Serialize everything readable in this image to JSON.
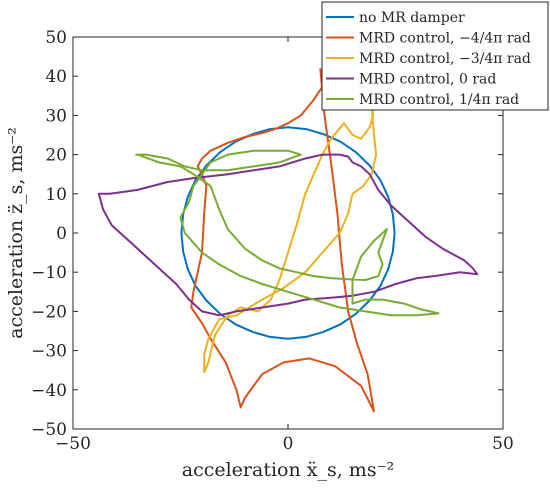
{
  "chart_data": {
    "type": "line",
    "xlabel": "acceleration ẍ_s, ms⁻²",
    "ylabel": "acceleration z̈_s, ms⁻²",
    "xlim": [
      -50,
      50
    ],
    "ylim": [
      -50,
      50
    ],
    "xticks": [
      "−50",
      "0",
      "50"
    ],
    "yticks": [
      "−50",
      "−40",
      "−30",
      "−20",
      "−10",
      "0",
      "10",
      "20",
      "30",
      "40",
      "50"
    ],
    "grid": false,
    "legend_position": "top-right",
    "series": [
      {
        "name": "no MR damper",
        "color": "#0072BD",
        "points": [
          [
            24.8,
            0
          ],
          [
            24.4,
            -4.7
          ],
          [
            23.3,
            -9.2
          ],
          [
            21.5,
            -13.5
          ],
          [
            19,
            -17.2
          ],
          [
            15.8,
            -20.6
          ],
          [
            12.2,
            -23.3
          ],
          [
            8.3,
            -25.2
          ],
          [
            4.2,
            -26.5
          ],
          [
            0,
            -27
          ],
          [
            -4.2,
            -26.5
          ],
          [
            -8.3,
            -25.2
          ],
          [
            -12.2,
            -23.3
          ],
          [
            -15.8,
            -20.6
          ],
          [
            -19,
            -17.2
          ],
          [
            -21.5,
            -13.5
          ],
          [
            -23.3,
            -9.2
          ],
          [
            -24.4,
            -4.7
          ],
          [
            -24.8,
            0
          ],
          [
            -24.4,
            4.7
          ],
          [
            -23.3,
            9.2
          ],
          [
            -21.5,
            13.5
          ],
          [
            -19,
            17.2
          ],
          [
            -15.8,
            20.6
          ],
          [
            -12.2,
            23.3
          ],
          [
            -8.3,
            25.2
          ],
          [
            -4.2,
            26.5
          ],
          [
            0,
            27
          ],
          [
            4.2,
            26.5
          ],
          [
            8.3,
            25.2
          ],
          [
            12.2,
            23.3
          ],
          [
            15.8,
            20.6
          ],
          [
            19,
            17.2
          ],
          [
            21.5,
            13.5
          ],
          [
            23.3,
            9.2
          ],
          [
            24.4,
            4.7
          ],
          [
            24.8,
            0
          ]
        ]
      },
      {
        "name": "MRD control, −4/4π rad",
        "color": "#D95319",
        "points": [
          [
            7.5,
            42
          ],
          [
            8.5,
            30
          ],
          [
            10,
            18
          ],
          [
            11.5,
            5
          ],
          [
            12.5,
            -8
          ],
          [
            14,
            -20
          ],
          [
            16,
            -28
          ],
          [
            18.5,
            -36
          ],
          [
            20,
            -45.5
          ],
          [
            17,
            -39
          ],
          [
            11,
            -34
          ],
          [
            5,
            -32
          ],
          [
            -1,
            -33
          ],
          [
            -6,
            -36
          ],
          [
            -10,
            -42
          ],
          [
            -11,
            -44.5
          ],
          [
            -12,
            -40
          ],
          [
            -14.5,
            -33
          ],
          [
            -18,
            -27
          ],
          [
            -20,
            -23
          ],
          [
            -22.5,
            -19
          ],
          [
            -22,
            -15
          ],
          [
            -20,
            -5
          ],
          [
            -19.5,
            5
          ],
          [
            -19,
            12
          ],
          [
            -20,
            15
          ],
          [
            -21,
            17
          ],
          [
            -20,
            19
          ],
          [
            -18,
            21
          ],
          [
            -14,
            23
          ],
          [
            -10,
            24.5
          ],
          [
            -6,
            25.5
          ],
          [
            -3,
            26.5
          ],
          [
            0,
            28
          ],
          [
            3,
            30
          ],
          [
            6,
            34
          ],
          [
            9,
            39
          ],
          [
            11,
            41.5
          ]
        ]
      },
      {
        "name": "MRD control, −3/4π rad",
        "color": "#EDB120",
        "points": [
          [
            19.5,
            32
          ],
          [
            20,
            25
          ],
          [
            20.5,
            20
          ],
          [
            19.5,
            15
          ],
          [
            17.5,
            12
          ],
          [
            15,
            10
          ],
          [
            14,
            5
          ],
          [
            12,
            0
          ],
          [
            8,
            -5
          ],
          [
            4,
            -10
          ],
          [
            -1,
            -14
          ],
          [
            -6,
            -17
          ],
          [
            -12,
            -21
          ],
          [
            -16,
            -22
          ],
          [
            -18.5,
            -27
          ],
          [
            -19.5,
            -31
          ],
          [
            -19.5,
            -35.5
          ],
          [
            -18.5,
            -33
          ],
          [
            -17,
            -26
          ],
          [
            -14,
            -21
          ],
          [
            -11,
            -19
          ],
          [
            -7,
            -20
          ],
          [
            -4,
            -17
          ],
          [
            -2,
            -12
          ],
          [
            0,
            -5
          ],
          [
            2,
            2
          ],
          [
            4,
            10
          ],
          [
            6,
            15
          ],
          [
            8,
            20
          ],
          [
            10,
            24
          ],
          [
            11.5,
            26
          ],
          [
            13,
            28
          ],
          [
            15,
            25
          ],
          [
            17,
            24
          ],
          [
            19,
            27
          ],
          [
            19.8,
            30
          ],
          [
            19.5,
            34
          ]
        ]
      },
      {
        "name": "MRD control, 0 rad",
        "color": "#7E2F8E",
        "points": [
          [
            -41.5,
            10
          ],
          [
            -35,
            11
          ],
          [
            -28,
            13
          ],
          [
            -22,
            14
          ],
          [
            -18,
            14.5
          ],
          [
            -14,
            15
          ],
          [
            -8,
            16
          ],
          [
            -2,
            17
          ],
          [
            4,
            19
          ],
          [
            8,
            20
          ],
          [
            12,
            20
          ],
          [
            14,
            19.5
          ],
          [
            15,
            18
          ],
          [
            17,
            17
          ],
          [
            19,
            15
          ],
          [
            21,
            11
          ],
          [
            24,
            7
          ],
          [
            28,
            3
          ],
          [
            32,
            -1
          ],
          [
            36,
            -4
          ],
          [
            41,
            -7
          ],
          [
            43,
            -9
          ],
          [
            44,
            -10.5
          ],
          [
            40,
            -10
          ],
          [
            34,
            -11
          ],
          [
            30,
            -11.5
          ],
          [
            25,
            -13
          ],
          [
            20,
            -15
          ],
          [
            15,
            -16
          ],
          [
            10,
            -16.5
          ],
          [
            4,
            -17
          ],
          [
            0,
            -18
          ],
          [
            -6,
            -19
          ],
          [
            -12,
            -20
          ],
          [
            -16,
            -21
          ],
          [
            -20,
            -20
          ],
          [
            -23,
            -17
          ],
          [
            -26,
            -13
          ],
          [
            -29,
            -10
          ],
          [
            -33,
            -6
          ],
          [
            -37,
            -2
          ],
          [
            -41,
            2
          ],
          [
            -43,
            6
          ],
          [
            -44,
            10
          ],
          [
            -41.5,
            10
          ]
        ]
      },
      {
        "name": "MRD control, 1/4π rad",
        "color": "#77AC30",
        "points": [
          [
            -35,
            20
          ],
          [
            -30,
            18
          ],
          [
            -25,
            17
          ],
          [
            -22,
            15
          ],
          [
            -18,
            12
          ],
          [
            -17,
            9
          ],
          [
            -16,
            6
          ],
          [
            -14,
            1
          ],
          [
            -10,
            -4
          ],
          [
            -6,
            -7
          ],
          [
            -2,
            -9
          ],
          [
            2,
            -10
          ],
          [
            6,
            -11
          ],
          [
            10,
            -11.5
          ],
          [
            14,
            -11.8
          ],
          [
            18,
            -12
          ],
          [
            21,
            -11
          ],
          [
            22,
            -8
          ],
          [
            21,
            -5
          ],
          [
            22,
            -2
          ],
          [
            23,
            1
          ],
          [
            20,
            -2
          ],
          [
            17,
            -6
          ],
          [
            15,
            -12
          ],
          [
            15,
            -18
          ],
          [
            18,
            -17
          ],
          [
            22,
            -17
          ],
          [
            27,
            -18
          ],
          [
            31,
            -19.5
          ],
          [
            33,
            -20
          ],
          [
            35,
            -20.5
          ],
          [
            30,
            -21
          ],
          [
            24,
            -21
          ],
          [
            18,
            -20
          ],
          [
            12,
            -19
          ],
          [
            6,
            -17
          ],
          [
            0,
            -15
          ],
          [
            -6,
            -13
          ],
          [
            -11,
            -11
          ],
          [
            -16,
            -8
          ],
          [
            -20,
            -5
          ],
          [
            -24,
            0
          ],
          [
            -25,
            4
          ],
          [
            -23,
            8
          ],
          [
            -22,
            12
          ],
          [
            -20,
            15
          ],
          [
            -18,
            18
          ],
          [
            -14,
            20
          ],
          [
            -8,
            21
          ],
          [
            -4,
            21
          ],
          [
            0,
            21
          ],
          [
            3,
            20
          ],
          [
            -2,
            18
          ],
          [
            -8,
            17
          ],
          [
            -14,
            16
          ],
          [
            -20,
            16
          ],
          [
            -24,
            17
          ],
          [
            -28,
            19
          ],
          [
            -33,
            20
          ],
          [
            -35.5,
            20
          ]
        ]
      }
    ]
  }
}
